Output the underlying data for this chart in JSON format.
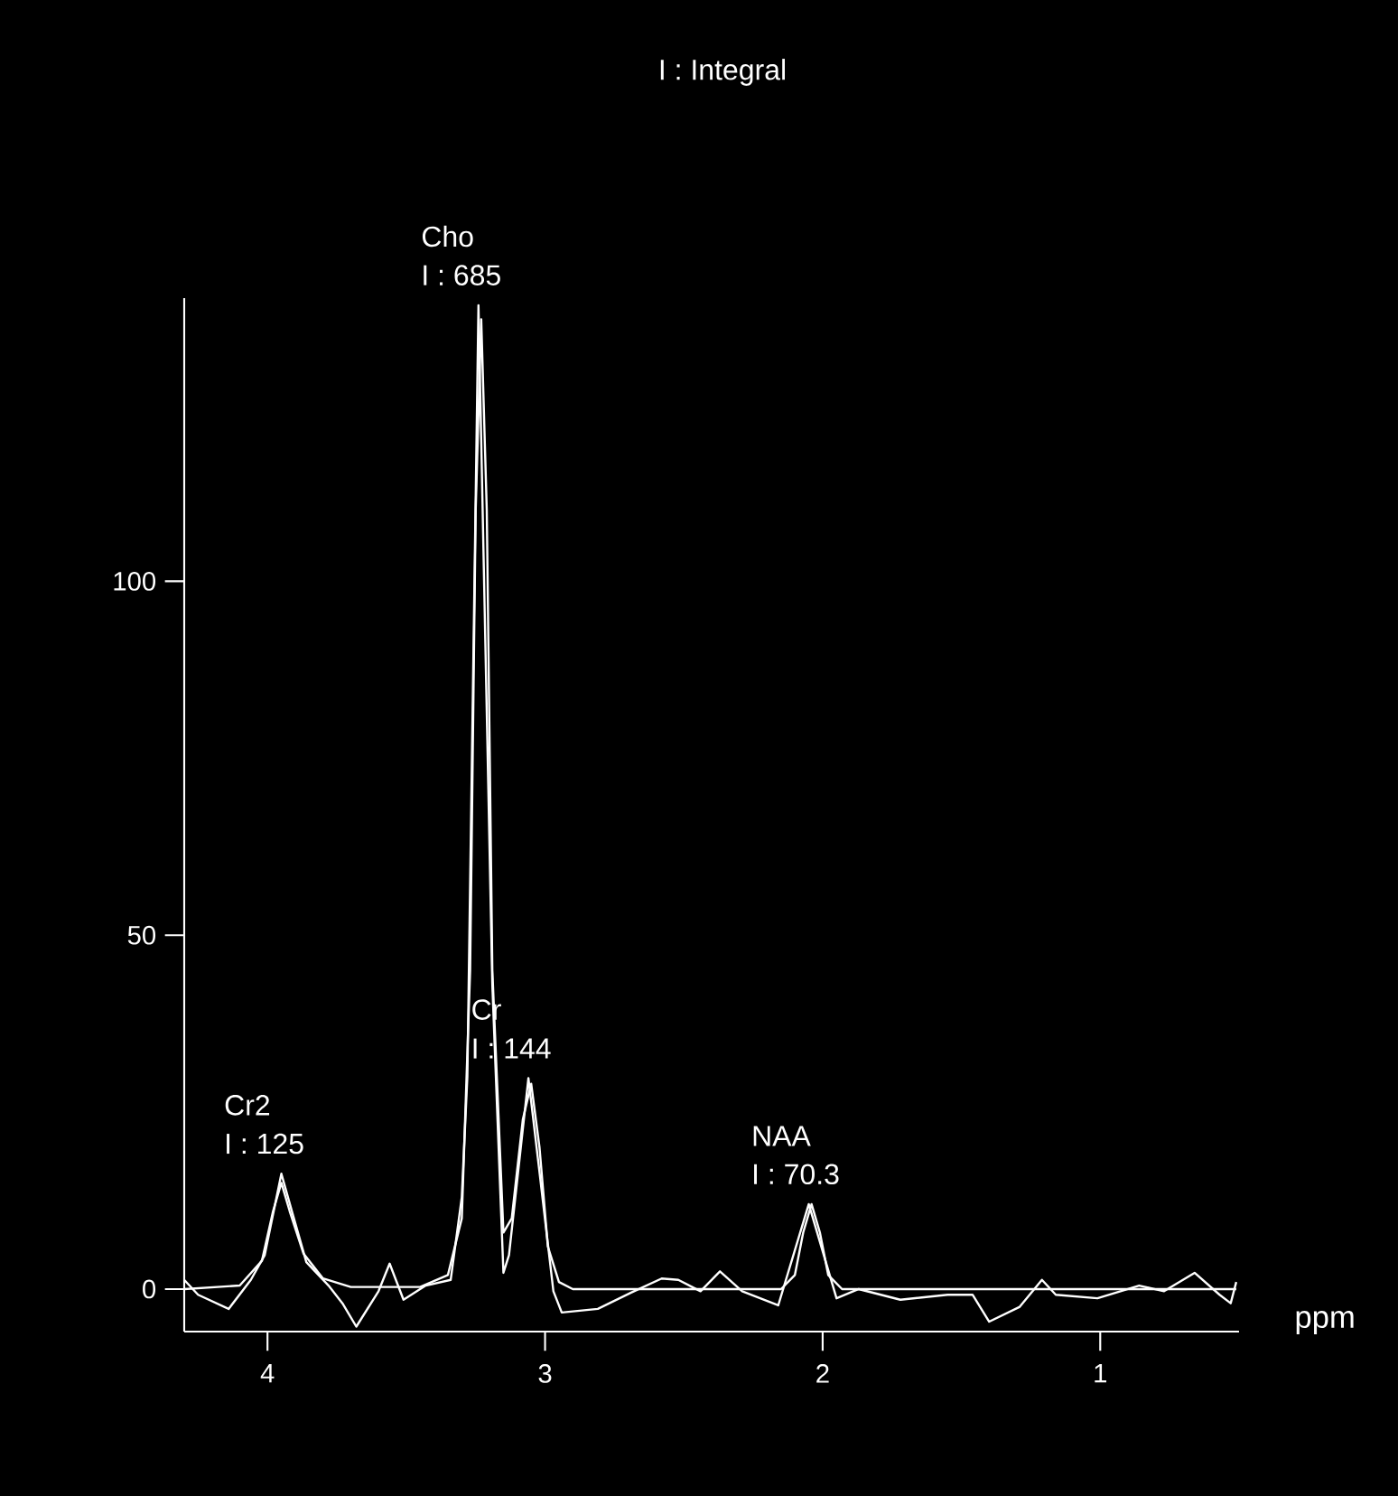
{
  "chart_data": {
    "type": "line",
    "title": "I : Integral",
    "xlabel": "ppm",
    "xlim": [
      4.3,
      0.5
    ],
    "xticks": [
      4,
      3,
      2,
      1
    ],
    "ylim": [
      -6,
      140
    ],
    "yticks": [
      0,
      50,
      100
    ],
    "grid": false,
    "marker": "none",
    "line_style": "solid",
    "series": [
      {
        "color": "#ffffff",
        "x": [
          4.3,
          4.25,
          4.14,
          4.06,
          4.01,
          3.95,
          3.91,
          3.86,
          3.78,
          3.73,
          3.68,
          3.6,
          3.56,
          3.51,
          3.43,
          3.34,
          3.3,
          3.28,
          3.24,
          3.19,
          3.15,
          3.13,
          3.06,
          3.02,
          2.97,
          2.94,
          2.81,
          2.69,
          2.58,
          2.52,
          2.44,
          2.37,
          2.29,
          2.16,
          2.05,
          1.95,
          1.87,
          1.72,
          1.55,
          1.46,
          1.4,
          1.29,
          1.21,
          1.16,
          1.01,
          0.86,
          0.77,
          0.66,
          0.57,
          0.53,
          0.51
        ],
        "values": [
          1.3,
          -0.8,
          -2.8,
          1.3,
          4.8,
          16.3,
          10.7,
          3.8,
          0.5,
          -2,
          -5.3,
          -0.3,
          3.6,
          -1.5,
          0.5,
          1.3,
          13,
          30,
          139,
          43,
          2.3,
          4.8,
          29.8,
          16.5,
          -0.3,
          -3.3,
          -2.8,
          -0.5,
          1.5,
          1.3,
          -0.3,
          2.5,
          -0.3,
          -2.3,
          12,
          -1.3,
          0,
          -1.5,
          -0.8,
          -0.8,
          -4.6,
          -2.5,
          1.3,
          -0.8,
          -1.3,
          0.5,
          -0.3,
          2.3,
          -0.8,
          -2,
          1
        ]
      },
      {
        "color": "#ffffff",
        "x": [
          4.3,
          4.1,
          4.02,
          3.98,
          3.95,
          3.92,
          3.87,
          3.8,
          3.7,
          3.45,
          3.35,
          3.3,
          3.27,
          3.25,
          3.23,
          3.21,
          3.19,
          3.15,
          3.12,
          3.08,
          3.05,
          3.02,
          2.99,
          2.95,
          2.9,
          2.15,
          2.1,
          2.07,
          2.04,
          2.01,
          1.98,
          1.93,
          0.51
        ],
        "values": [
          0,
          0.5,
          4,
          11,
          15,
          11,
          5,
          1.5,
          0.3,
          0.3,
          2,
          10,
          45,
          110,
          137,
          110,
          45,
          8,
          10,
          24,
          29,
          20,
          6,
          1,
          0,
          0,
          2,
          8,
          12,
          8,
          2,
          0,
          0
        ]
      }
    ],
    "annotations": [
      {
        "text": "Cho",
        "x": 3.24,
        "y": 139
      },
      {
        "text": "I : 685",
        "x": 3.24,
        "y": 139
      },
      {
        "text": "Cr",
        "x": 3.06,
        "y": 29.8
      },
      {
        "text": "I : 144",
        "x": 3.06,
        "y": 29.8
      },
      {
        "text": "Cr2",
        "x": 3.95,
        "y": 16.3
      },
      {
        "text": "I : 125",
        "x": 3.95,
        "y": 16.3
      },
      {
        "text": "NAA",
        "x": 2.05,
        "y": 12
      },
      {
        "text": "I : 70.3",
        "x": 2.05,
        "y": 12
      }
    ]
  }
}
